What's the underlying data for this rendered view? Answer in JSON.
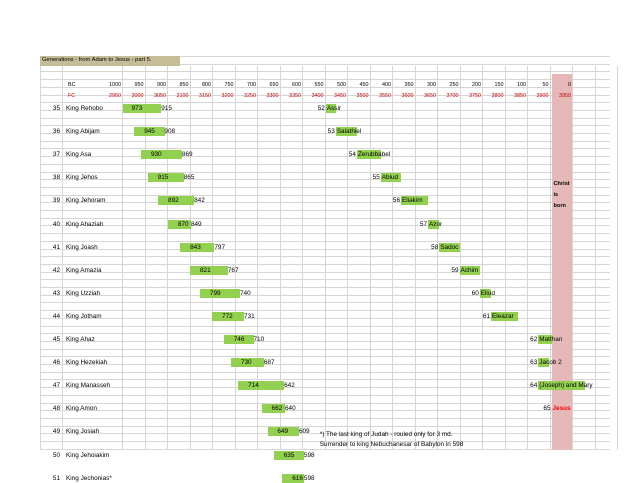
{
  "title": "Generations - from Adam to Jesus  - part 5.",
  "header": {
    "bc_label": "BC",
    "fc_label": "FC",
    "bc_values": [
      "1000",
      "950",
      "900",
      "850",
      "800",
      "750",
      "700",
      "650",
      "600",
      "550",
      "500",
      "450",
      "400",
      "350",
      "300",
      "250",
      "200",
      "150",
      "100",
      "50",
      "0"
    ],
    "fc_values": [
      "2950",
      "3000",
      "3050",
      "3100",
      "3150",
      "3200",
      "3250",
      "3300",
      "3350",
      "3400",
      "3450",
      "3500",
      "3550",
      "3600",
      "3650",
      "3700",
      "3750",
      "3800",
      "3850",
      "3900",
      "3950"
    ]
  },
  "christ_note": [
    "Christ",
    "is",
    "born"
  ],
  "kings": [
    {
      "no": "35",
      "name": "King Rehobo",
      "start": "973",
      "end": "915",
      "sNo": "52",
      "sName": "Assir",
      "barStart": 973,
      "barEnd": 915,
      "sBarStart": 547,
      "sBarEnd": 525
    },
    {
      "no": "36",
      "name": "King Abijam",
      "start": "945",
      "end": "908",
      "sNo": "53",
      "sName": "Salathiel",
      "barStart": 945,
      "barEnd": 908,
      "sBarStart": 525,
      "sBarEnd": 478
    },
    {
      "no": "37",
      "name": "King Asa",
      "start": "930",
      "end": "869",
      "sNo": "54",
      "sName": "Zerubbabel",
      "barStart": 930,
      "barEnd": 869,
      "sBarStart": 478,
      "sBarEnd": 425
    },
    {
      "no": "38",
      "name": "King Jehos",
      "start": "915",
      "end": "865",
      "sNo": "55",
      "sName": "Abiud",
      "barStart": 915,
      "barEnd": 865,
      "sBarStart": 425,
      "sBarEnd": 380
    },
    {
      "no": "39",
      "name": "King Jehoram",
      "start": "892",
      "end": "842",
      "sNo": "56",
      "sName": "Eliakim",
      "barStart": 892,
      "barEnd": 842,
      "sBarStart": 380,
      "sBarEnd": 320
    },
    {
      "no": "40",
      "name": "King Ahaziah",
      "start": "870",
      "end": "849",
      "sNo": "57",
      "sName": "Azor",
      "barStart": 870,
      "barEnd": 849,
      "sBarStart": 320,
      "sBarEnd": 295
    },
    {
      "no": "41",
      "name": "King Joash",
      "start": "843",
      "end": "797",
      "sNo": "58",
      "sName": "Sadoc",
      "barStart": 843,
      "barEnd": 797,
      "sBarStart": 295,
      "sBarEnd": 250
    },
    {
      "no": "42",
      "name": "King Amazia",
      "start": "821",
      "end": "767",
      "sNo": "59",
      "sName": "Achim",
      "barStart": 821,
      "barEnd": 767,
      "sBarStart": 250,
      "sBarEnd": 205
    },
    {
      "no": "43",
      "name": "King Uzziah",
      "start": "799",
      "end": "740",
      "sNo": "60",
      "sName": "Eliud",
      "barStart": 799,
      "barEnd": 740,
      "sBarStart": 205,
      "sBarEnd": 180
    },
    {
      "no": "44",
      "name": "King Jotham",
      "start": "772",
      "end": "731",
      "sNo": "61",
      "sName": "Eleazar",
      "barStart": 772,
      "barEnd": 731,
      "sBarStart": 180,
      "sBarEnd": 120
    },
    {
      "no": "45",
      "name": "King Ahaz",
      "start": "746",
      "end": "710",
      "sNo": "62",
      "sName": "Matthan",
      "barStart": 746,
      "barEnd": 710,
      "sBarStart": 75,
      "sBarEnd": 45
    },
    {
      "no": "46",
      "name": "King Hezekiah",
      "start": "730",
      "end": "687",
      "sNo": "63",
      "sName": "Jacob 2",
      "barStart": 730,
      "barEnd": 687,
      "sBarStart": 75,
      "sBarEnd": 52
    },
    {
      "no": "47",
      "name": "King Manasseh",
      "start": "714",
      "end": "642",
      "sNo": "64",
      "sName": "(Joseph) and Mary",
      "barStart": 714,
      "barEnd": 642,
      "sBarStart": 75,
      "sBarEnd": -28
    },
    {
      "no": "48",
      "name": "King Amon",
      "start": "662",
      "end": "640",
      "sNo": "65",
      "sName": "Jesus",
      "barStart": 662,
      "barEnd": 640,
      "sBarStart": null,
      "sBarEnd": null
    },
    {
      "no": "49",
      "name": "King Josiah",
      "start": "649",
      "end": "609",
      "sNo": "",
      "sName": "",
      "barStart": 649,
      "barEnd": 609,
      "sBarStart": null,
      "sBarEnd": null
    },
    {
      "no": "50",
      "name": "King Jehoiakim",
      "start": "635",
      "end": "598",
      "sNo": "",
      "sName": "",
      "barStart": 635,
      "barEnd": 598,
      "sBarStart": null,
      "sBarEnd": null
    },
    {
      "no": "51",
      "name": "King Jechonias*",
      "start": "616",
      "end": "598",
      "sNo": "",
      "sName": "",
      "barStart": 616,
      "barEnd": 598,
      "sBarStart": null,
      "sBarEnd": null
    }
  ],
  "footnote": [
    "*) The last king of Judah - rouled only for 3 md.",
    "Surrender to king Nebuchanesar of Babylon in 598"
  ],
  "colors": {
    "bar": "#92d050",
    "christ": "#e6b9b8",
    "title_band": "#c4bd97",
    "fc_text": "#c00000",
    "jesus_text": "#ff0000"
  }
}
